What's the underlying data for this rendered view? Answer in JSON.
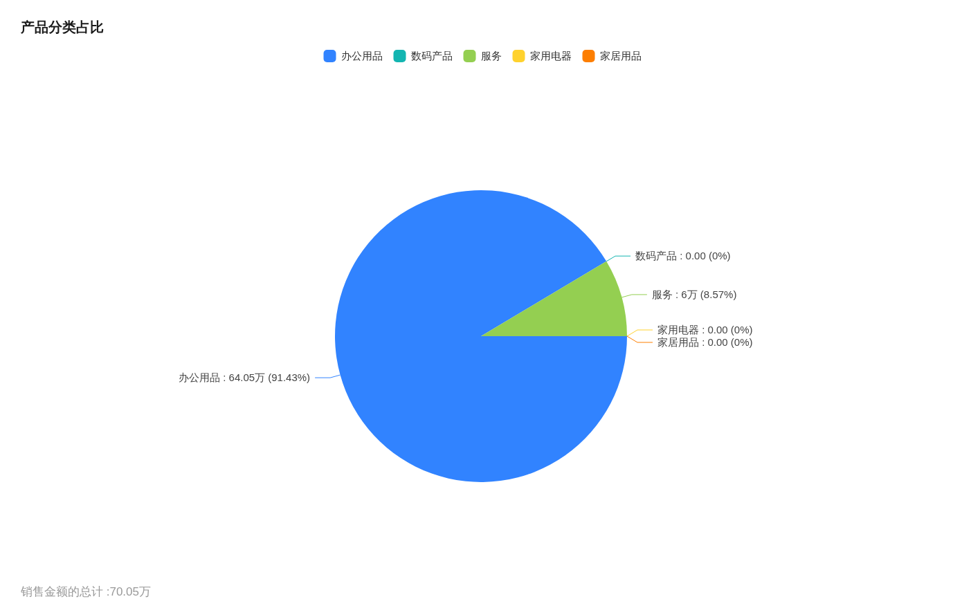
{
  "chart_data": {
    "type": "pie",
    "title": "产品分类占比",
    "categories": [
      "办公用品",
      "数码产品",
      "服务",
      "家用电器",
      "家居用品"
    ],
    "values": [
      64.05,
      0,
      6,
      0,
      0
    ],
    "value_labels": [
      "办公用品 : 64.05万 (91.43%)",
      "数码产品 : 0.00 (0%)",
      "服务 : 6万 (8.57%)",
      "家用电器 : 0.00 (0%)",
      "家居用品 : 0.00 (0%)"
    ],
    "colors": [
      "#3183ff",
      "#13b5b1",
      "#94cf51",
      "#ffd22e",
      "#fd7e00"
    ],
    "legend": "top",
    "annotations": [
      "销售金额的总计 :70.05万"
    ]
  }
}
